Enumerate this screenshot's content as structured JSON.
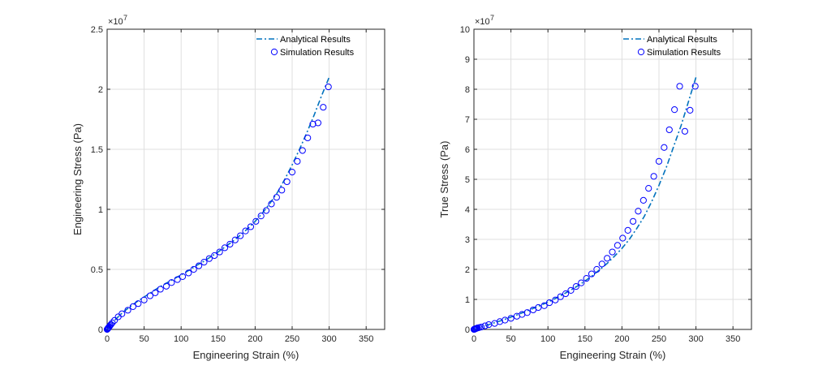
{
  "chart_data": [
    {
      "type": "line",
      "xlabel": "Engineering Strain (%)",
      "ylabel": "Engineering Stress (Pa)",
      "xlim": [
        0,
        375
      ],
      "ylim": [
        0,
        2.5
      ],
      "xticks": [
        0,
        50,
        100,
        150,
        200,
        250,
        300,
        350
      ],
      "yticks": [
        0,
        0.5,
        1,
        1.5,
        2,
        2.5
      ],
      "ytick_labels": [
        "0",
        "0.5",
        "1",
        "1.5",
        "2",
        "2.5"
      ],
      "xtick_labels": [
        "0",
        "50",
        "100",
        "150",
        "200",
        "250",
        "300",
        "350"
      ],
      "y_exponent": "×10",
      "y_exponent_power": "7",
      "grid": true,
      "legend_position": "top-right",
      "series": [
        {
          "name": "Analytical Results",
          "style": "dash-dot",
          "color": "#0072BD",
          "x": [
            0,
            10,
            20,
            30,
            40,
            50,
            60,
            70,
            80,
            90,
            100,
            110,
            120,
            130,
            140,
            150,
            160,
            170,
            180,
            190,
            200,
            210,
            220,
            230,
            240,
            250,
            260,
            270,
            280,
            290,
            300
          ],
          "y": [
            0,
            0.075,
            0.135,
            0.185,
            0.23,
            0.27,
            0.31,
            0.35,
            0.385,
            0.42,
            0.455,
            0.49,
            0.53,
            0.565,
            0.605,
            0.645,
            0.69,
            0.735,
            0.785,
            0.84,
            0.9,
            0.97,
            1.05,
            1.14,
            1.25,
            1.37,
            1.5,
            1.64,
            1.79,
            1.95,
            2.1
          ]
        },
        {
          "name": "Simulation Results",
          "style": "circle",
          "color": "#0000FF",
          "x": [
            0,
            0.5,
            1,
            1.5,
            2,
            3,
            4,
            5,
            7,
            10,
            15,
            20,
            28,
            35,
            42,
            50,
            58,
            65,
            72,
            80,
            87,
            95,
            102,
            110,
            117,
            124,
            131,
            138,
            145,
            152,
            159,
            166,
            173,
            180,
            187,
            194,
            201,
            208,
            215,
            222,
            229,
            236,
            243,
            250,
            257,
            264,
            271,
            278,
            285,
            292,
            299
          ],
          "y": [
            0,
            0.004,
            0.008,
            0.012,
            0.016,
            0.024,
            0.032,
            0.04,
            0.055,
            0.075,
            0.105,
            0.13,
            0.16,
            0.19,
            0.215,
            0.245,
            0.28,
            0.305,
            0.335,
            0.36,
            0.39,
            0.415,
            0.44,
            0.47,
            0.5,
            0.53,
            0.56,
            0.59,
            0.615,
            0.645,
            0.68,
            0.71,
            0.745,
            0.78,
            0.82,
            0.855,
            0.9,
            0.945,
            0.99,
            1.045,
            1.1,
            1.16,
            1.23,
            1.31,
            1.4,
            1.49,
            1.595,
            1.71,
            1.72,
            1.85,
            2.02
          ]
        }
      ]
    },
    {
      "type": "line",
      "xlabel": "Engineering Strain (%)",
      "ylabel": "True Stress (Pa)",
      "xlim": [
        0,
        375
      ],
      "ylim": [
        0,
        10
      ],
      "xticks": [
        0,
        50,
        100,
        150,
        200,
        250,
        300,
        350
      ],
      "yticks": [
        0,
        1,
        2,
        3,
        4,
        5,
        6,
        7,
        8,
        9,
        10
      ],
      "ytick_labels": [
        "0",
        "1",
        "2",
        "3",
        "4",
        "5",
        "6",
        "7",
        "8",
        "9",
        "10"
      ],
      "xtick_labels": [
        "0",
        "50",
        "100",
        "150",
        "200",
        "250",
        "300",
        "350"
      ],
      "y_exponent": "×10",
      "y_exponent_power": "7",
      "grid": true,
      "legend_position": "top-right",
      "series": [
        {
          "name": "Analytical Results",
          "style": "dash-dot",
          "color": "#0072BD",
          "x": [
            0,
            10,
            20,
            30,
            40,
            50,
            60,
            70,
            80,
            90,
            100,
            110,
            120,
            130,
            140,
            150,
            160,
            170,
            180,
            190,
            200,
            210,
            220,
            230,
            240,
            250,
            260,
            270,
            280,
            290,
            300
          ],
          "y": [
            0,
            0.08,
            0.16,
            0.24,
            0.32,
            0.41,
            0.5,
            0.6,
            0.7,
            0.8,
            0.91,
            1.03,
            1.16,
            1.3,
            1.45,
            1.61,
            1.79,
            1.99,
            2.2,
            2.44,
            2.7,
            3.0,
            3.36,
            3.76,
            4.25,
            4.8,
            5.4,
            6.1,
            6.8,
            7.6,
            8.4
          ]
        },
        {
          "name": "Simulation Results",
          "style": "circle",
          "color": "#0000FF",
          "x": [
            0,
            0.5,
            1,
            1.5,
            2,
            3,
            4,
            5,
            7,
            10,
            15,
            20,
            28,
            35,
            42,
            50,
            58,
            65,
            72,
            80,
            87,
            95,
            102,
            110,
            117,
            124,
            131,
            138,
            145,
            152,
            159,
            166,
            173,
            180,
            187,
            194,
            201,
            208,
            215,
            222,
            229,
            236,
            243,
            250,
            257,
            264,
            271,
            278,
            285,
            292,
            299
          ],
          "y": [
            0,
            0.005,
            0.01,
            0.015,
            0.02,
            0.03,
            0.04,
            0.05,
            0.06,
            0.08,
            0.12,
            0.16,
            0.2,
            0.26,
            0.31,
            0.37,
            0.44,
            0.5,
            0.56,
            0.65,
            0.73,
            0.79,
            0.89,
            0.98,
            1.09,
            1.19,
            1.3,
            1.43,
            1.55,
            1.7,
            1.85,
            2.0,
            2.18,
            2.37,
            2.58,
            2.8,
            3.04,
            3.3,
            3.6,
            3.94,
            4.3,
            4.7,
            5.1,
            5.6,
            6.06,
            6.65,
            7.32,
            8.1,
            6.6,
            7.3,
            8.1
          ]
        }
      ]
    }
  ]
}
